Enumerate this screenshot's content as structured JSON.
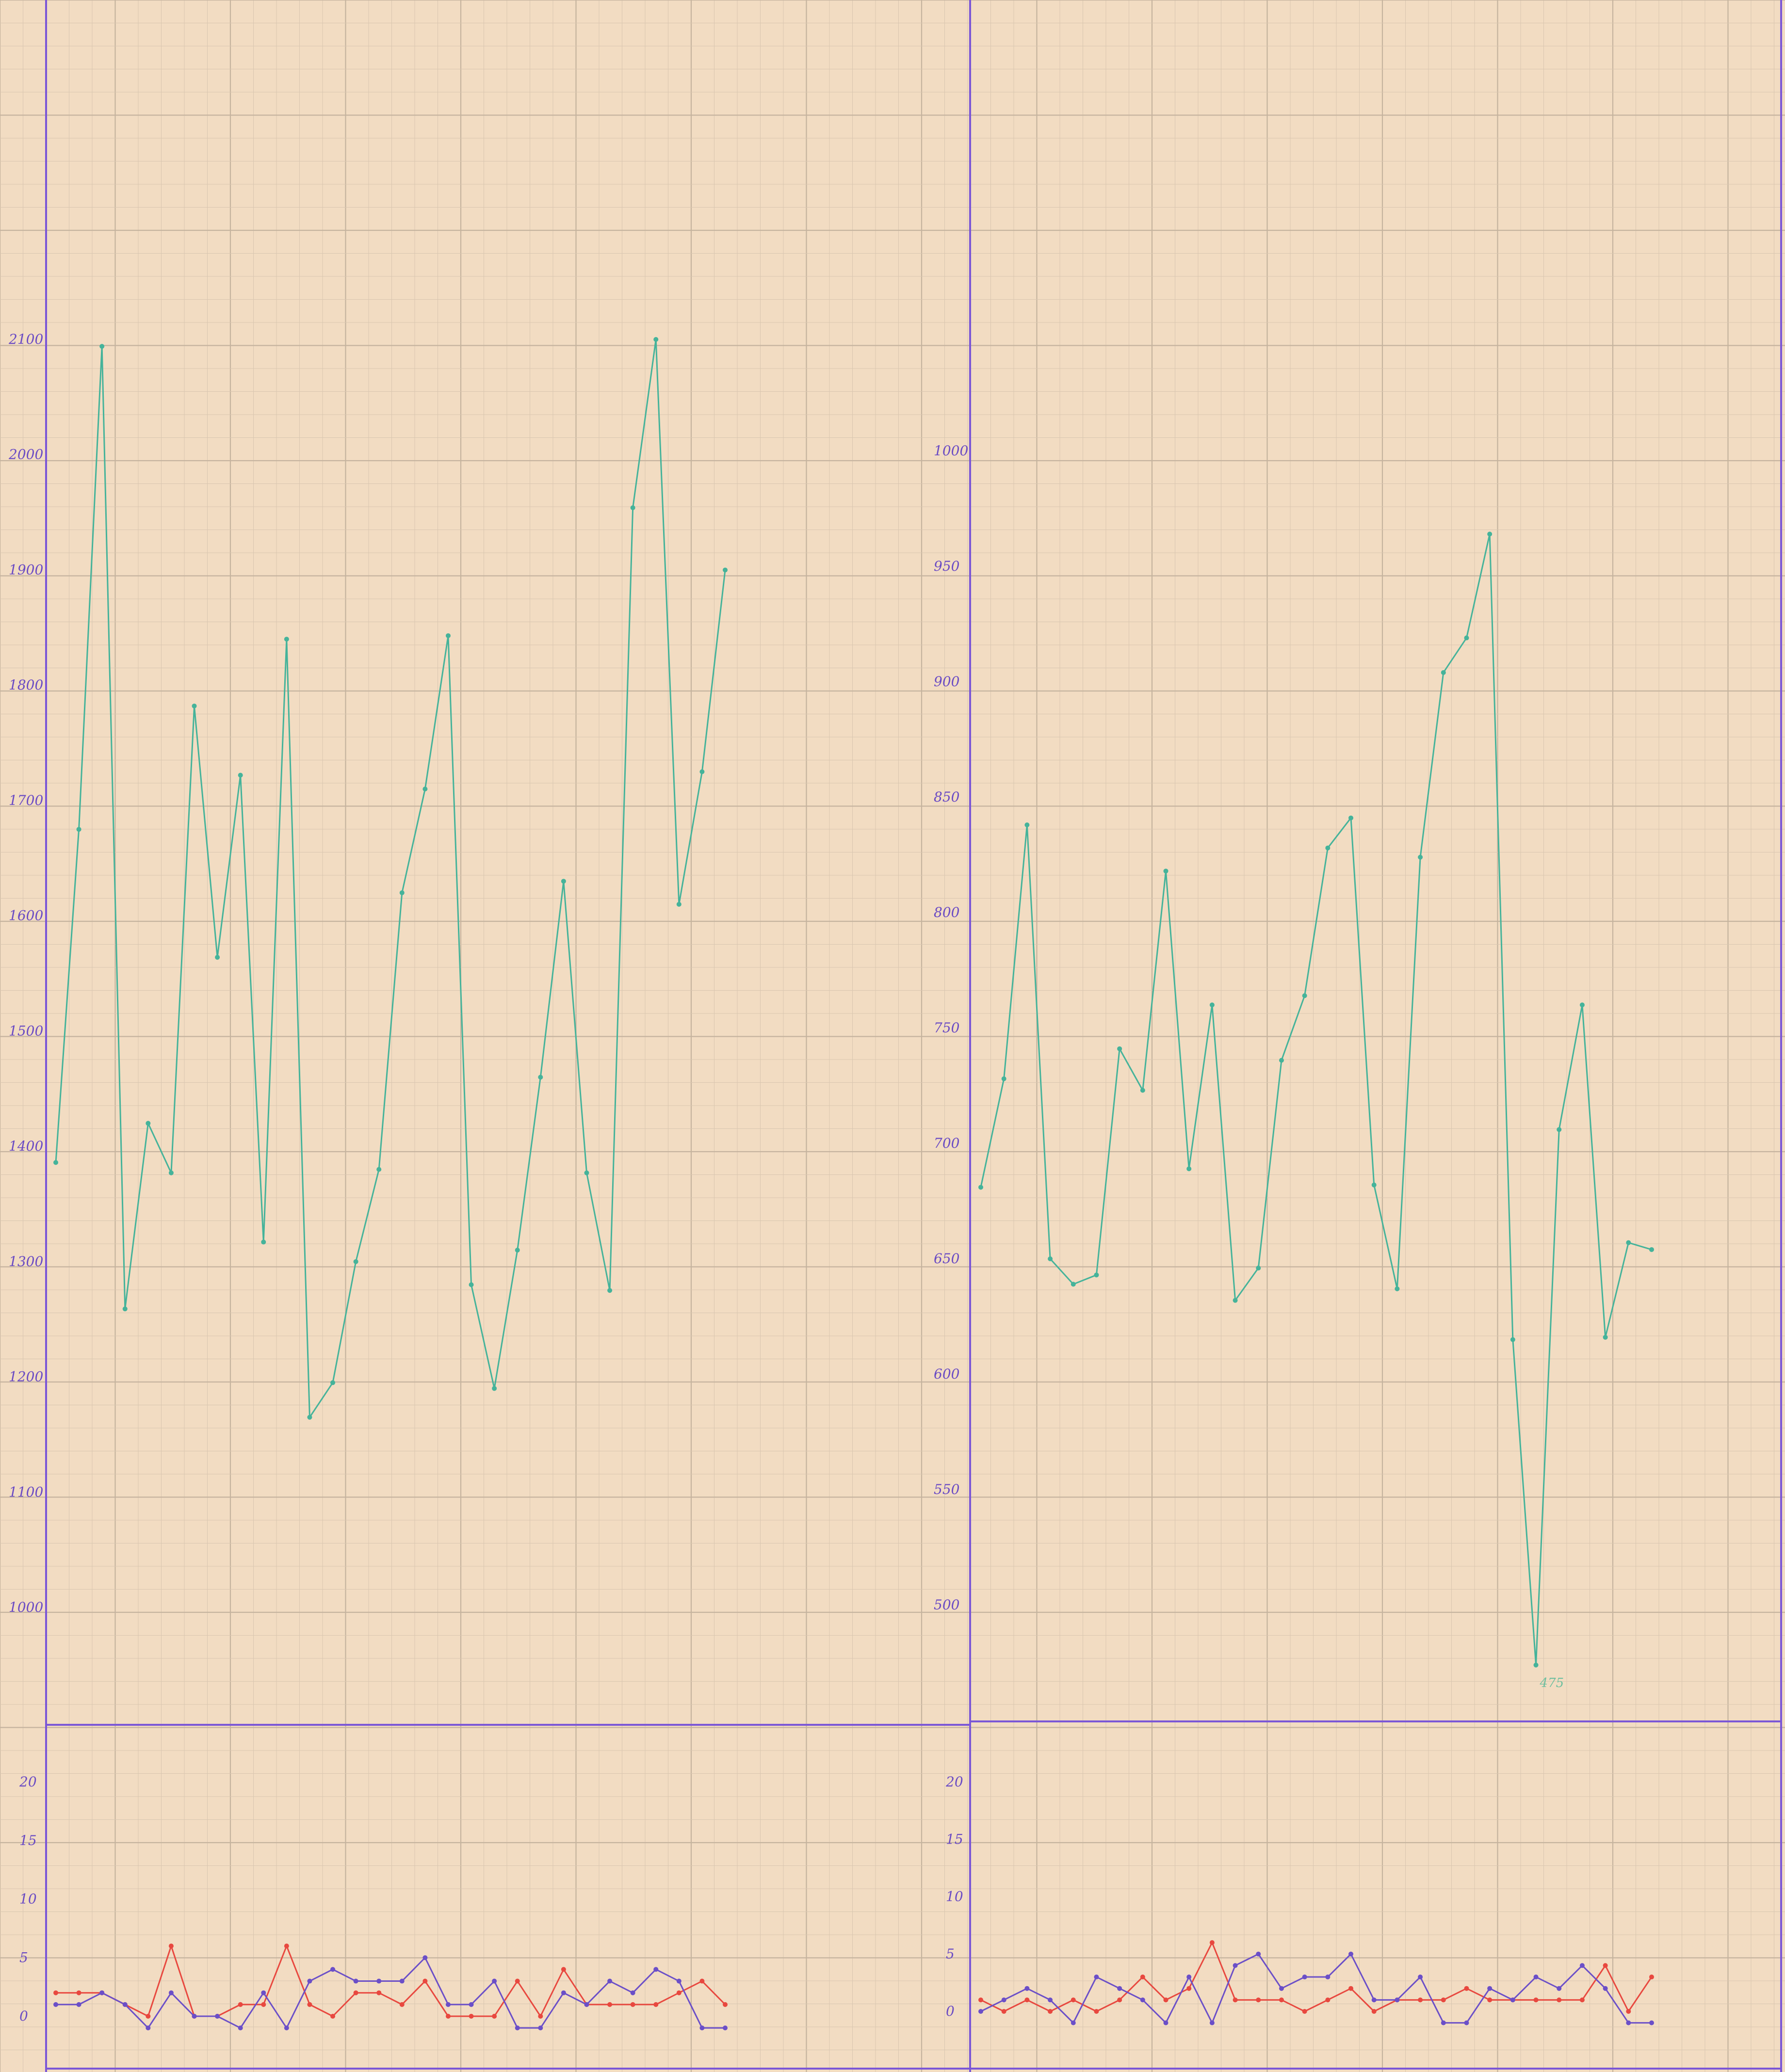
{
  "colors": {
    "paper": "#f2dcc2",
    "grid_minor": "#d9c6b0",
    "grid_major": "#c5b39e",
    "frame": "#7b57d6",
    "label": "#6a4bc4",
    "teal": "#45b39a",
    "red": "#e8483f",
    "purple": "#6b4fc8"
  },
  "chart_data": [
    {
      "type": "line",
      "panel": "left-upper",
      "title": "",
      "xlabel": "",
      "ylabel": "",
      "ylim": [
        900,
        2200
      ],
      "y_ticks": [
        1000,
        1100,
        1200,
        1300,
        1400,
        1500,
        1600,
        1700,
        1800,
        1900,
        2000,
        2100
      ],
      "y_tick_labels": [
        "1000",
        "1100",
        "1200",
        "1300",
        "1400",
        "1500",
        "1600",
        "1700",
        "1800",
        "1900",
        "2000",
        "2100"
      ],
      "grid": true,
      "series": [
        {
          "color": "teal",
          "x": [
            0,
            1,
            2,
            3,
            4,
            5,
            6,
            7,
            8,
            9,
            10,
            11,
            12,
            13,
            14,
            15,
            16,
            17,
            18,
            19,
            20,
            21,
            22,
            23,
            24,
            25,
            26,
            27,
            28,
            29
          ],
          "values": [
            1386,
            1675,
            2094,
            1259,
            1420,
            1377,
            1782,
            1564,
            1722,
            1317,
            1840,
            1165,
            1195,
            1300,
            1380,
            1620,
            1710,
            1843,
            1280,
            1190,
            1310,
            1460,
            1630,
            1377,
            1275,
            1954,
            2100,
            1610,
            1725,
            1900
          ]
        }
      ]
    },
    {
      "type": "line",
      "panel": "right-upper",
      "title": "",
      "xlabel": "",
      "ylabel": "",
      "ylim": [
        450,
        1100
      ],
      "y_ticks": [
        500,
        550,
        600,
        650,
        700,
        750,
        800,
        850,
        900,
        950,
        1000
      ],
      "y_tick_labels": [
        "500",
        "550",
        "600",
        "650",
        "700",
        "750",
        "800",
        "850",
        "900",
        "950",
        "1000"
      ],
      "grid": true,
      "annotations": [
        "475"
      ],
      "series": [
        {
          "color": "teal",
          "x": [
            0,
            1,
            2,
            3,
            4,
            5,
            6,
            7,
            8,
            9,
            10,
            11,
            12,
            13,
            14,
            15,
            16,
            17,
            18,
            19,
            20,
            21,
            22,
            23,
            24,
            25,
            26,
            27,
            28,
            29
          ],
          "values": [
            681,
            728,
            838,
            650,
            639,
            643,
            741,
            723,
            818,
            689,
            760,
            632,
            646,
            736,
            764,
            828,
            841,
            682,
            637,
            824,
            904,
            919,
            964,
            615,
            474,
            706,
            760,
            616,
            657,
            654
          ]
        }
      ]
    },
    {
      "type": "line",
      "panel": "left-lower",
      "title": "",
      "xlabel": "",
      "ylabel": "",
      "ylim": [
        -5,
        25
      ],
      "y_ticks": [
        0,
        5,
        10,
        15,
        20
      ],
      "y_tick_labels": [
        "0",
        "5",
        "10",
        "15",
        "20"
      ],
      "grid": true,
      "series": [
        {
          "color": "red",
          "x": [
            0,
            1,
            2,
            3,
            4,
            5,
            6,
            7,
            8,
            9,
            10,
            11,
            12,
            13,
            14,
            15,
            16,
            17,
            18,
            19,
            20,
            21,
            22,
            23,
            24,
            25,
            26,
            27,
            28,
            29
          ],
          "values": [
            2,
            2,
            2,
            1,
            0,
            6,
            0,
            0,
            1,
            1,
            6,
            1,
            0,
            2,
            2,
            1,
            3,
            0,
            0,
            0,
            3,
            0,
            4,
            1,
            1,
            1,
            1,
            2,
            3,
            1
          ]
        },
        {
          "color": "purple",
          "x": [
            0,
            1,
            2,
            3,
            4,
            5,
            6,
            7,
            8,
            9,
            10,
            11,
            12,
            13,
            14,
            15,
            16,
            17,
            18,
            19,
            20,
            21,
            22,
            23,
            24,
            25,
            26,
            27,
            28,
            29
          ],
          "values": [
            1,
            1,
            2,
            1,
            -1,
            2,
            0,
            0,
            -1,
            2,
            -1,
            3,
            4,
            3,
            3,
            3,
            5,
            1,
            1,
            3,
            -1,
            -1,
            2,
            1,
            3,
            2,
            4,
            3,
            -1,
            -1
          ]
        }
      ]
    },
    {
      "type": "line",
      "panel": "right-lower",
      "title": "",
      "xlabel": "",
      "ylabel": "",
      "ylim": [
        -5,
        25
      ],
      "y_ticks": [
        0,
        5,
        10,
        15,
        20
      ],
      "y_tick_labels": [
        "0",
        "5",
        "10",
        "15",
        "20"
      ],
      "grid": true,
      "series": [
        {
          "color": "red",
          "x": [
            0,
            1,
            2,
            3,
            4,
            5,
            6,
            7,
            8,
            9,
            10,
            11,
            12,
            13,
            14,
            15,
            16,
            17,
            18,
            19,
            20,
            21,
            22,
            23,
            24,
            25,
            26,
            27,
            28,
            29
          ],
          "values": [
            1,
            0,
            1,
            0,
            1,
            0,
            1,
            3,
            1,
            2,
            6,
            1,
            1,
            1,
            0,
            1,
            2,
            0,
            1,
            1,
            1,
            2,
            1,
            1,
            1,
            1,
            1,
            4,
            0,
            3
          ]
        },
        {
          "color": "purple",
          "x": [
            0,
            1,
            2,
            3,
            4,
            5,
            6,
            7,
            8,
            9,
            10,
            11,
            12,
            13,
            14,
            15,
            16,
            17,
            18,
            19,
            20,
            21,
            22,
            23,
            24,
            25,
            26,
            27,
            28,
            29
          ],
          "values": [
            0,
            1,
            2,
            1,
            -1,
            3,
            2,
            1,
            -1,
            3,
            -1,
            4,
            5,
            2,
            3,
            3,
            5,
            1,
            1,
            3,
            -1,
            -1,
            2,
            1,
            3,
            2,
            4,
            2,
            -1,
            -1
          ]
        }
      ]
    }
  ]
}
